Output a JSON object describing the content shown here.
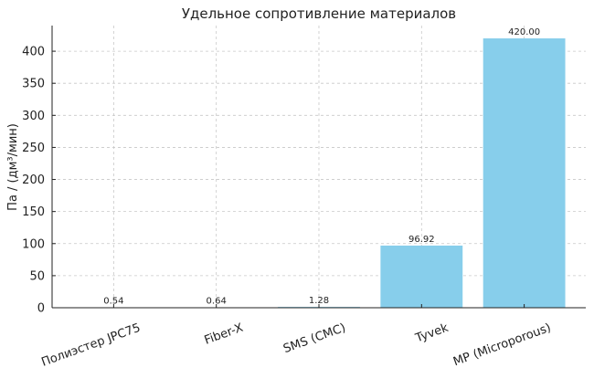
{
  "chart_data": {
    "type": "bar",
    "title": "Удельное сопротивление материалов",
    "ylabel": "Па / (дм³/мин)",
    "categories": [
      "Полиэстер JPC75",
      "Fiber-X",
      "SMS (СМС)",
      "Tyvek",
      "MP (Microporous)"
    ],
    "values": [
      0.54,
      0.64,
      1.28,
      96.92,
      420.0
    ],
    "value_labels": [
      "0.54",
      "0.64",
      "1.28",
      "96.92",
      "420.00"
    ],
    "color": "#87ceeb",
    "ylim": [
      0,
      440
    ],
    "yticks": [
      0,
      50,
      100,
      150,
      200,
      250,
      300,
      350,
      400
    ],
    "grid": true
  }
}
